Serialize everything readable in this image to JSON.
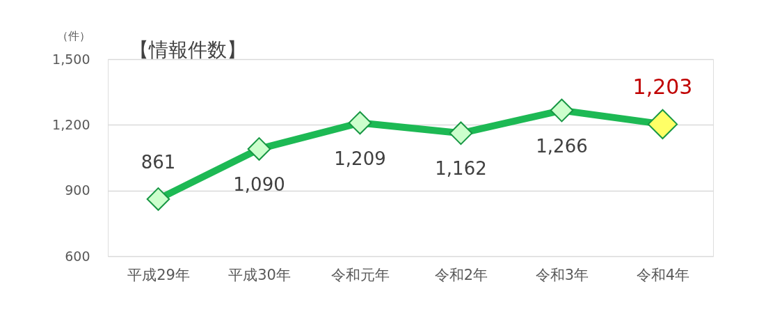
{
  "chart_data": {
    "type": "line",
    "title": "【情報件数】",
    "ylabel": "（件）",
    "categories": [
      "平成29年",
      "平成30年",
      "令和元年",
      "令和2年",
      "令和3年",
      "令和4年"
    ],
    "series": [
      {
        "color": "#1db954",
        "colors": [
          "#ccffcc",
          "#ccffcc",
          "#ccffcc",
          "#ccffcc",
          "#ccffcc",
          "#ffff66"
        ],
        "values": [
          861,
          1090,
          1209,
          1162,
          1266,
          1203
        ],
        "value_labels": [
          "861",
          "1,090",
          "1,209",
          "1,162",
          "1,266",
          "1,203"
        ]
      }
    ],
    "ylim": [
      600,
      1500
    ],
    "yticks": [
      600,
      900,
      {
        "value": 1200,
        "label": "1,200"
      },
      {
        "value": 1500,
        "label": "1,500"
      }
    ],
    "grid": "y",
    "marker": "diamond",
    "line_style": "solid"
  }
}
